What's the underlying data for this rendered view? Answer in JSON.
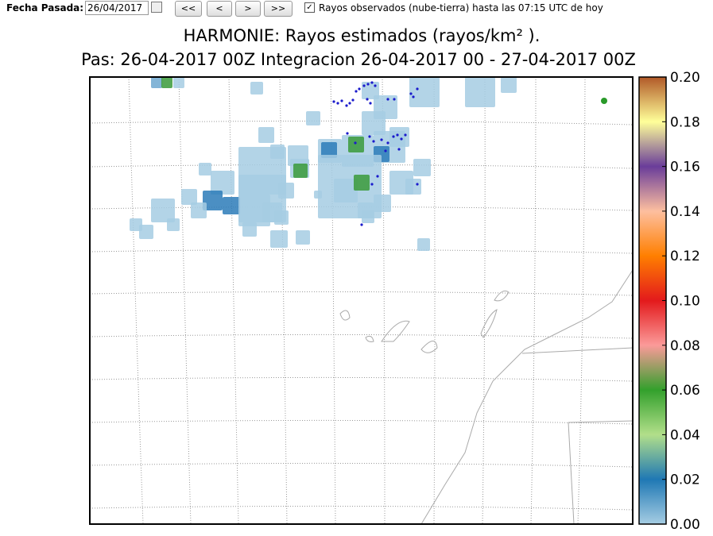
{
  "toolbar": {
    "date_label": "Fecha Pasada:",
    "date_value": "26/04/2017",
    "buttons": [
      "<<",
      "<",
      ">",
      ">>"
    ],
    "checkbox_label": "Rayos observados (nube-tierra) hasta las 07:15 UTC de hoy"
  },
  "map": {
    "title": "HARMONIE: Rayos estimados  (rayos/km² ).",
    "subtitle": "Pas: 26-04-2017 00Z Integracion 26-04-2017 00 - 27-04-2017 00Z",
    "colorbar_ticks": [
      {
        "value": 0,
        "label": "0.00"
      },
      {
        "value": 0.02,
        "label": "0.02"
      },
      {
        "value": 0.04,
        "label": "0.04"
      },
      {
        "value": 0.06,
        "label": "0.06"
      },
      {
        "value": 0.08,
        "label": "0.08"
      },
      {
        "value": 0.1,
        "label": "0.10"
      },
      {
        "value": 0.12,
        "label": "0.12"
      },
      {
        "value": 0.14,
        "label": "0.14"
      },
      {
        "value": 0.16,
        "label": "0.16"
      },
      {
        "value": 0.18,
        "label": "0.18"
      },
      {
        "value": 0.2,
        "label": "0.20"
      }
    ]
  }
}
